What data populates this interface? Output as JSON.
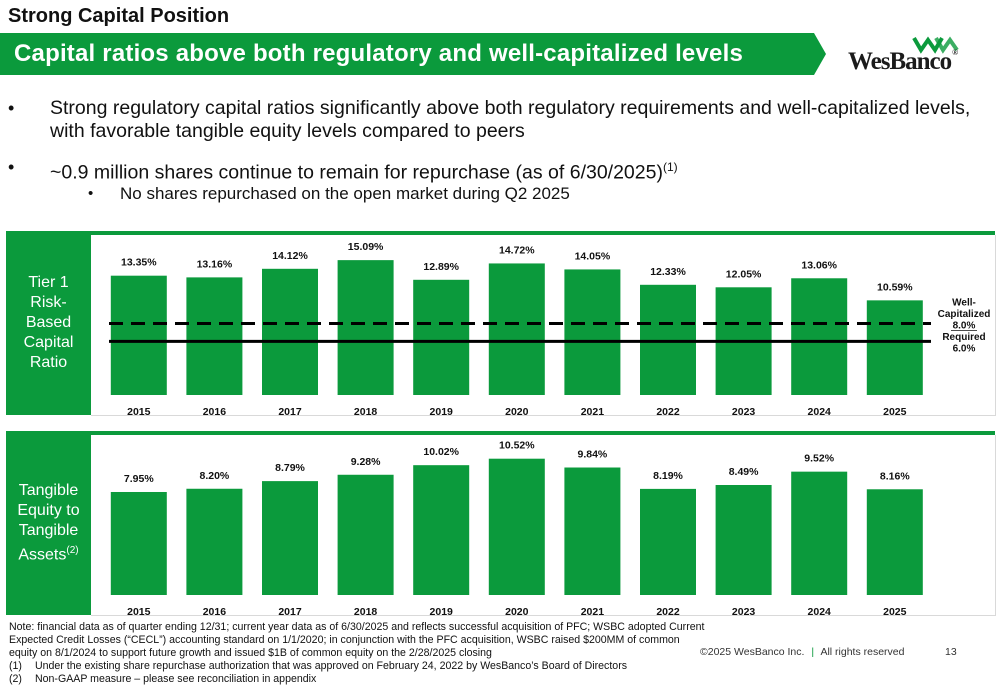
{
  "header": {
    "title": "Strong Capital Position",
    "banner": "Capital ratios above both regulatory and well-capitalized levels",
    "logo": "WesBanco",
    "logo_mark": "®"
  },
  "bullets": [
    {
      "text": "Strong regulatory capital ratios significantly above both regulatory requirements and well-capitalized levels, with favorable tangible equity levels compared to peers"
    },
    {
      "text": "~0.9 million shares continue to remain for repurchase (as of 6/30/2025)",
      "sup": "(1)"
    },
    {
      "text": "No shares repurchased on the open market during Q2 2025"
    }
  ],
  "colors": {
    "accent": "#0b9a3c",
    "bar": "#0b9a3c"
  },
  "chart_data": [
    {
      "type": "bar",
      "title": "Tier 1 Risk-Based Capital Ratio",
      "categories": [
        "2015",
        "2016",
        "2017",
        "2018",
        "2019",
        "2020",
        "2021",
        "2022",
        "2023",
        "2024",
        "2025"
      ],
      "values": [
        13.35,
        13.16,
        14.12,
        15.09,
        12.89,
        14.72,
        14.05,
        12.33,
        12.05,
        13.06,
        10.59
      ],
      "labels": [
        "13.35%",
        "13.16%",
        "14.12%",
        "15.09%",
        "12.89%",
        "14.72%",
        "14.05%",
        "12.33%",
        "12.05%",
        "13.06%",
        "10.59%"
      ],
      "ylim": [
        0,
        16
      ],
      "reference_lines": [
        {
          "value": 8.0,
          "style": "dashed",
          "label_lines": [
            "Well-",
            "Capitalized",
            "8.0%"
          ]
        },
        {
          "value": 6.0,
          "style": "solid",
          "label_lines": [
            "Required",
            "6.0%"
          ]
        }
      ],
      "grid": false
    },
    {
      "type": "bar",
      "title": "Tangible Equity to Tangible Assets",
      "title_sup": "(2)",
      "categories": [
        "2015",
        "2016",
        "2017",
        "2018",
        "2019",
        "2020",
        "2021",
        "2022",
        "2023",
        "2024",
        "2025"
      ],
      "values": [
        7.95,
        8.2,
        8.79,
        9.28,
        10.02,
        10.52,
        9.84,
        8.19,
        8.49,
        9.52,
        8.16
      ],
      "labels": [
        "7.95%",
        "8.20%",
        "8.79%",
        "9.28%",
        "10.02%",
        "10.52%",
        "9.84%",
        "8.19%",
        "8.49%",
        "9.52%",
        "8.16%"
      ],
      "ylim": [
        0,
        11.5
      ],
      "grid": false
    }
  ],
  "side_labels": [
    {
      "lines": [
        "Tier 1",
        "Risk-",
        "Based",
        "Capital",
        "Ratio"
      ]
    },
    {
      "lines": [
        "Tangible",
        "Equity to",
        "Tangible",
        "Assets"
      ],
      "sup": "(2)"
    }
  ],
  "notes": [
    "Note: financial data as of quarter ending 12/31; current year data as of 6/30/2025 and reflects successful acquisition of PFC; WSBC adopted Current Expected Credit Losses (“CECL”) accounting standard on 1/1/2020; in conjunction with the PFC acquisition, WSBC raised $200MM of common equity on 8/1/2024 to support future growth and issued $1B of common equity on the 2/28/2025 closing",
    {
      "num": "(1)",
      "text": "Under the existing share repurchase authorization that was approved on February 24, 2022 by WesBanco’s Board of Directors"
    },
    {
      "num": "(2)",
      "text": "Non-GAAP measure – please see reconciliation in appendix"
    }
  ],
  "footer": {
    "copyright": "©2025 WesBanco Inc.",
    "separator": "|",
    "rights": "All rights reserved",
    "page": "13"
  }
}
